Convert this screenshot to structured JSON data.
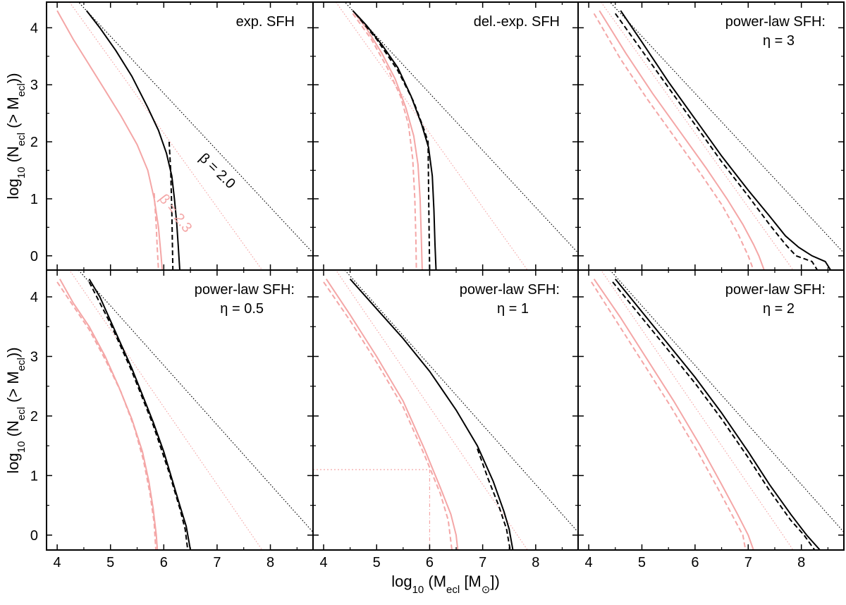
{
  "figure": {
    "x_axis_title": {
      "pre": "log",
      "sub1": "10",
      "mid": " (M",
      "sub2": "ecl",
      "post": " [M",
      "sub3": "⊙",
      "end": "])"
    },
    "y_axis_title": {
      "pre": "log",
      "sub1": "10",
      "mid": " (N",
      "sub2": "ecl",
      "post": " (> M",
      "sub3": "ecl",
      "end": "))"
    },
    "colors": {
      "black": "#000000",
      "pink": "#f4a6a6",
      "frame": "#000000"
    }
  },
  "chart_data": {
    "type": "line",
    "xlim": [
      3.8,
      8.8
    ],
    "ylim": [
      -0.25,
      4.45
    ],
    "x_ticks": [
      4,
      5,
      6,
      7,
      8
    ],
    "y_ticks": [
      0,
      1,
      2,
      3,
      4
    ],
    "grid": false,
    "reference_lines": {
      "beta_2_0": {
        "label": "β = 2.0",
        "slope": -1.0,
        "intercept": 8.85,
        "color": "#000000"
      },
      "beta_2_3": {
        "label": "β = 2.3",
        "slope": -1.3,
        "intercept": 9.95,
        "color": "#f4a6a6"
      }
    },
    "panels": [
      {
        "label_lines": [
          "exp. SFH"
        ],
        "show_beta_labels": true,
        "black_solid": [
          [
            4.55,
            4.3
          ],
          [
            4.8,
            4.0
          ],
          [
            5.1,
            3.6
          ],
          [
            5.4,
            3.15
          ],
          [
            5.7,
            2.6
          ],
          [
            5.9,
            2.2
          ],
          [
            6.05,
            1.8
          ],
          [
            6.15,
            1.4
          ],
          [
            6.2,
            1.0
          ],
          [
            6.24,
            0.6
          ],
          [
            6.27,
            0.2
          ],
          [
            6.3,
            -0.25
          ]
        ],
        "black_dashed": [
          [
            6.1,
            2.0
          ],
          [
            6.13,
            1.5
          ],
          [
            6.15,
            0.8
          ],
          [
            6.17,
            -0.25
          ]
        ],
        "pink_solid": [
          [
            4.0,
            4.3
          ],
          [
            4.3,
            3.8
          ],
          [
            4.6,
            3.35
          ],
          [
            4.9,
            2.9
          ],
          [
            5.2,
            2.45
          ],
          [
            5.5,
            1.95
          ],
          [
            5.7,
            1.5
          ],
          [
            5.82,
            1.0
          ],
          [
            5.9,
            0.5
          ],
          [
            5.95,
            0.0
          ],
          [
            5.97,
            -0.25
          ]
        ],
        "pink_dashed": [
          [
            5.82,
            1.1
          ],
          [
            5.86,
            0.5
          ],
          [
            5.88,
            0.1
          ],
          [
            5.9,
            -0.25
          ]
        ]
      },
      {
        "label_lines": [
          "del.-exp. SFH"
        ],
        "show_beta_labels": false,
        "black_solid": [
          [
            4.55,
            4.3
          ],
          [
            4.8,
            4.05
          ],
          [
            5.1,
            3.7
          ],
          [
            5.4,
            3.3
          ],
          [
            5.65,
            2.8
          ],
          [
            5.85,
            2.3
          ],
          [
            5.98,
            1.9
          ],
          [
            6.05,
            1.4
          ],
          [
            6.08,
            0.8
          ],
          [
            6.1,
            0.2
          ],
          [
            6.12,
            -0.25
          ]
        ],
        "black_dashed": [
          [
            4.6,
            4.25
          ],
          [
            5.0,
            3.8
          ],
          [
            5.4,
            3.25
          ],
          [
            5.7,
            2.7
          ],
          [
            5.9,
            2.2
          ],
          [
            5.97,
            2.0
          ],
          [
            5.98,
            1.2
          ],
          [
            5.99,
            0.4
          ],
          [
            6.0,
            -0.25
          ]
        ],
        "pink_solid": [
          [
            4.55,
            4.3
          ],
          [
            4.8,
            4.0
          ],
          [
            5.1,
            3.55
          ],
          [
            5.35,
            3.1
          ],
          [
            5.55,
            2.6
          ],
          [
            5.7,
            2.1
          ],
          [
            5.78,
            1.6
          ],
          [
            5.82,
            1.0
          ],
          [
            5.84,
            0.4
          ],
          [
            5.86,
            -0.25
          ]
        ],
        "pink_dashed": [
          [
            4.55,
            4.25
          ],
          [
            4.9,
            3.8
          ],
          [
            5.2,
            3.3
          ],
          [
            5.45,
            2.8
          ],
          [
            5.6,
            2.3
          ],
          [
            5.68,
            1.7
          ],
          [
            5.72,
            1.0
          ],
          [
            5.74,
            0.3
          ],
          [
            5.75,
            -0.25
          ]
        ]
      },
      {
        "label_lines": [
          "power-law SFH:",
          "η = 3"
        ],
        "show_beta_labels": false,
        "black_solid": [
          [
            4.6,
            4.3
          ],
          [
            5.0,
            3.75
          ],
          [
            5.5,
            3.05
          ],
          [
            6.0,
            2.4
          ],
          [
            6.5,
            1.75
          ],
          [
            7.0,
            1.15
          ],
          [
            7.4,
            0.7
          ],
          [
            7.7,
            0.35
          ],
          [
            7.95,
            0.15
          ],
          [
            8.2,
            0.0
          ],
          [
            8.45,
            -0.1
          ],
          [
            8.55,
            -0.25
          ]
        ],
        "black_dashed": [
          [
            4.5,
            4.25
          ],
          [
            5.0,
            3.6
          ],
          [
            5.5,
            2.95
          ],
          [
            6.0,
            2.3
          ],
          [
            6.5,
            1.65
          ],
          [
            7.0,
            1.05
          ],
          [
            7.4,
            0.55
          ],
          [
            7.7,
            0.2
          ],
          [
            7.9,
            0.0
          ],
          [
            8.2,
            -0.1
          ],
          [
            8.3,
            -0.25
          ]
        ],
        "pink_solid": [
          [
            4.2,
            4.3
          ],
          [
            4.7,
            3.55
          ],
          [
            5.2,
            2.85
          ],
          [
            5.7,
            2.2
          ],
          [
            6.2,
            1.55
          ],
          [
            6.6,
            1.0
          ],
          [
            6.9,
            0.55
          ],
          [
            7.1,
            0.2
          ],
          [
            7.2,
            0.0
          ],
          [
            7.3,
            -0.25
          ]
        ],
        "pink_dashed": [
          [
            4.1,
            4.25
          ],
          [
            4.6,
            3.45
          ],
          [
            5.1,
            2.75
          ],
          [
            5.6,
            2.1
          ],
          [
            6.1,
            1.45
          ],
          [
            6.5,
            0.9
          ],
          [
            6.8,
            0.4
          ],
          [
            7.0,
            0.0
          ],
          [
            7.1,
            -0.25
          ]
        ]
      },
      {
        "label_lines": [
          "power-law SFH:",
          "η = 0.5"
        ],
        "show_beta_labels": false,
        "black_solid": [
          [
            4.6,
            4.3
          ],
          [
            4.8,
            4.0
          ],
          [
            5.0,
            3.6
          ],
          [
            5.2,
            3.2
          ],
          [
            5.4,
            2.8
          ],
          [
            5.6,
            2.35
          ],
          [
            5.8,
            1.9
          ],
          [
            6.0,
            1.4
          ],
          [
            6.15,
            0.95
          ],
          [
            6.3,
            0.5
          ],
          [
            6.42,
            0.15
          ],
          [
            6.5,
            -0.25
          ]
        ],
        "black_dashed": [
          [
            4.6,
            4.25
          ],
          [
            5.0,
            3.55
          ],
          [
            5.4,
            2.75
          ],
          [
            5.8,
            1.85
          ],
          [
            6.1,
            1.05
          ],
          [
            6.3,
            0.45
          ],
          [
            6.4,
            0.1
          ],
          [
            6.45,
            -0.25
          ]
        ],
        "pink_solid": [
          [
            4.05,
            4.3
          ],
          [
            4.3,
            3.9
          ],
          [
            4.6,
            3.5
          ],
          [
            4.9,
            3.0
          ],
          [
            5.15,
            2.5
          ],
          [
            5.4,
            1.95
          ],
          [
            5.6,
            1.4
          ],
          [
            5.72,
            0.9
          ],
          [
            5.8,
            0.45
          ],
          [
            5.86,
            0.0
          ],
          [
            5.88,
            -0.25
          ]
        ],
        "pink_dashed": [
          [
            4.0,
            4.25
          ],
          [
            4.3,
            3.85
          ],
          [
            4.6,
            3.45
          ],
          [
            4.9,
            2.95
          ],
          [
            5.2,
            2.4
          ],
          [
            5.45,
            1.8
          ],
          [
            5.62,
            1.25
          ],
          [
            5.74,
            0.7
          ],
          [
            5.82,
            0.2
          ],
          [
            5.85,
            -0.25
          ]
        ]
      },
      {
        "label_lines": [
          "power-law SFH:",
          "η = 1"
        ],
        "show_beta_labels": false,
        "black_solid": [
          [
            4.5,
            4.3
          ],
          [
            5.0,
            3.8
          ],
          [
            5.5,
            3.3
          ],
          [
            6.0,
            2.75
          ],
          [
            6.5,
            2.1
          ],
          [
            6.9,
            1.5
          ],
          [
            7.2,
            0.9
          ],
          [
            7.4,
            0.4
          ],
          [
            7.5,
            0.1
          ],
          [
            7.57,
            -0.25
          ]
        ],
        "black_dashed": [
          [
            6.9,
            1.45
          ],
          [
            7.1,
            0.95
          ],
          [
            7.3,
            0.5
          ],
          [
            7.45,
            0.1
          ],
          [
            7.52,
            -0.25
          ]
        ],
        "pink_solid": [
          [
            4.05,
            4.3
          ],
          [
            4.5,
            3.7
          ],
          [
            5.0,
            3.0
          ],
          [
            5.5,
            2.25
          ],
          [
            5.9,
            1.45
          ],
          [
            6.2,
            0.8
          ],
          [
            6.4,
            0.35
          ],
          [
            6.5,
            0.0
          ],
          [
            6.53,
            -0.25
          ]
        ],
        "pink_dashed": [
          [
            4.0,
            4.25
          ],
          [
            4.5,
            3.6
          ],
          [
            5.0,
            2.9
          ],
          [
            5.5,
            2.15
          ],
          [
            5.9,
            1.35
          ],
          [
            6.2,
            0.7
          ],
          [
            6.35,
            0.25
          ],
          [
            6.42,
            -0.25
          ]
        ],
        "guide": {
          "x": 6.0,
          "y": 1.1
        }
      },
      {
        "label_lines": [
          "power-law SFH:",
          "η = 2"
        ],
        "show_beta_labels": false,
        "black_solid": [
          [
            4.5,
            4.3
          ],
          [
            5.0,
            3.75
          ],
          [
            5.5,
            3.2
          ],
          [
            6.0,
            2.65
          ],
          [
            6.5,
            2.05
          ],
          [
            7.0,
            1.4
          ],
          [
            7.4,
            0.85
          ],
          [
            7.8,
            0.35
          ],
          [
            8.1,
            0.0
          ],
          [
            8.35,
            -0.25
          ]
        ],
        "black_dashed": [
          [
            4.45,
            4.25
          ],
          [
            5.0,
            3.65
          ],
          [
            5.5,
            3.1
          ],
          [
            6.0,
            2.55
          ],
          [
            6.5,
            1.95
          ],
          [
            7.0,
            1.3
          ],
          [
            7.4,
            0.75
          ],
          [
            7.8,
            0.25
          ],
          [
            8.05,
            0.0
          ],
          [
            8.25,
            -0.25
          ]
        ],
        "pink_solid": [
          [
            4.1,
            4.3
          ],
          [
            4.6,
            3.65
          ],
          [
            5.1,
            2.95
          ],
          [
            5.6,
            2.25
          ],
          [
            6.1,
            1.5
          ],
          [
            6.5,
            0.85
          ],
          [
            6.8,
            0.35
          ],
          [
            7.0,
            0.0
          ],
          [
            7.1,
            -0.25
          ]
        ],
        "pink_dashed": [
          [
            4.05,
            4.25
          ],
          [
            4.55,
            3.55
          ],
          [
            5.05,
            2.85
          ],
          [
            5.55,
            2.15
          ],
          [
            6.05,
            1.4
          ],
          [
            6.45,
            0.75
          ],
          [
            6.75,
            0.25
          ],
          [
            6.9,
            0.0
          ],
          [
            6.95,
            -0.25
          ]
        ]
      }
    ]
  }
}
